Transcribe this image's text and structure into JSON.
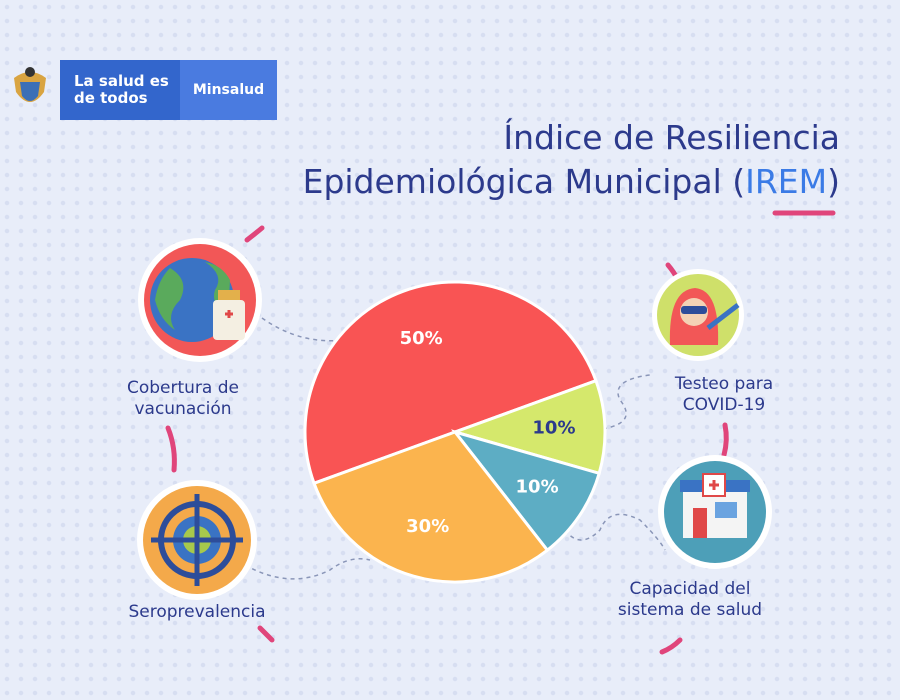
{
  "header": {
    "slogan": "La salud es de todos",
    "brand": "Minsalud",
    "title_line1": "Índice de Resiliencia",
    "title_line2": "Epidemiológica Municipal (",
    "title_acronym": "IREM",
    "title_close": ")"
  },
  "chart_data": {
    "type": "pie",
    "categories": [
      "Cobertura de vacunación",
      "Testeo para COVID-19",
      "Capacidad del sistema de salud",
      "Seroprevalencia"
    ],
    "values": [
      50,
      10,
      10,
      30
    ],
    "value_labels": [
      "50%",
      "10%",
      "10%",
      "30%"
    ],
    "colors": [
      "#f95454",
      "#d5e86c",
      "#5dadc4",
      "#fbb44e"
    ],
    "label_colors": [
      "#ffffff",
      "#2c3a8c",
      "#ffffff",
      "#ffffff"
    ]
  }
}
